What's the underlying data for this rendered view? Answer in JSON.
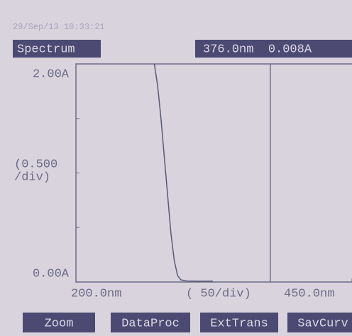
{
  "header": {
    "datetime": "29/Sep/13 10:33:21",
    "mode": "Spectrum",
    "readout": "376.0nm  0.008A"
  },
  "buttons": [
    "Zoom",
    "DataProc",
    "ExtTrans",
    "SavCurv"
  ],
  "chart_data": {
    "type": "line",
    "x_label": "( 50/div)",
    "y_label": [
      "(0.500",
      "/div)"
    ],
    "x": [
      271,
      274,
      277,
      280,
      283,
      286,
      289,
      292,
      295,
      300,
      310,
      324
    ],
    "series": [
      {
        "color": "#5a5a78",
        "values": [
          2.0,
          1.8,
          1.5,
          1.15,
          0.8,
          0.45,
          0.2,
          0.06,
          0.02,
          0.01,
          0.008,
          0.008
        ]
      }
    ],
    "xlim": [
      200,
      450
    ],
    "ylim": [
      0,
      2
    ],
    "xticks": [
      {
        "value": 200,
        "label": "200.0nm"
      },
      {
        "value": 450,
        "label": "450.0nm"
      }
    ],
    "yticks": [
      {
        "value": 0,
        "label": "0.00A"
      },
      {
        "value": 2,
        "label": "2.00A"
      }
    ],
    "y_minor_ticks": [
      0.5,
      1,
      1.5
    ],
    "cursor_x": 376
  }
}
